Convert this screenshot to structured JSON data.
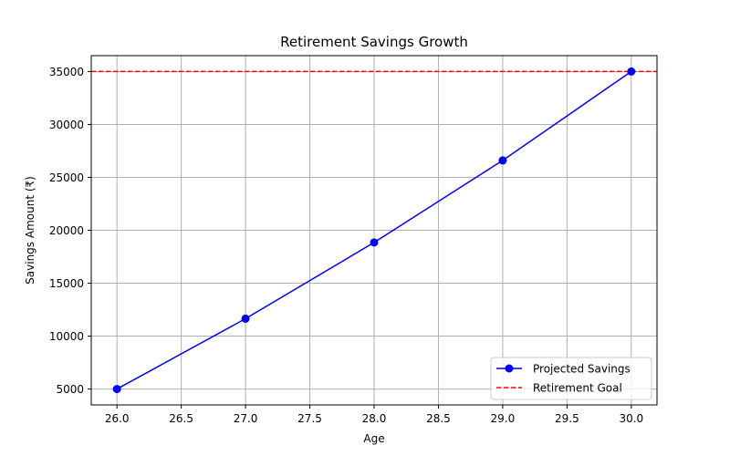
{
  "chart_data": {
    "type": "line",
    "title": "Retirement Savings Growth",
    "xlabel": "Age",
    "ylabel": "Savings Amount (₹)",
    "xlim": [
      25.8,
      30.2
    ],
    "ylim": [
      3500,
      36500
    ],
    "xticks": [
      26.0,
      26.5,
      27.0,
      27.5,
      28.0,
      28.5,
      29.0,
      29.5,
      30.0
    ],
    "xtick_labels": [
      "26.0",
      "26.5",
      "27.0",
      "27.5",
      "28.0",
      "28.5",
      "29.0",
      "29.5",
      "30.0"
    ],
    "yticks": [
      5000,
      10000,
      15000,
      20000,
      25000,
      30000,
      35000
    ],
    "ytick_labels": [
      "5000",
      "10000",
      "15000",
      "20000",
      "25000",
      "30000",
      "35000"
    ],
    "grid": true,
    "legend_position": "bottom-right",
    "series": [
      {
        "name": "Projected Savings",
        "color": "#0000ff",
        "marker": "circle",
        "x": [
          26,
          27,
          28,
          29,
          30
        ],
        "y": [
          5000,
          11650,
          18850,
          26600,
          35000
        ]
      }
    ],
    "reference_lines": [
      {
        "name": "Retirement Goal",
        "orientation": "horizontal",
        "y": 35000,
        "color": "#ff0000",
        "style": "dashed"
      }
    ]
  }
}
